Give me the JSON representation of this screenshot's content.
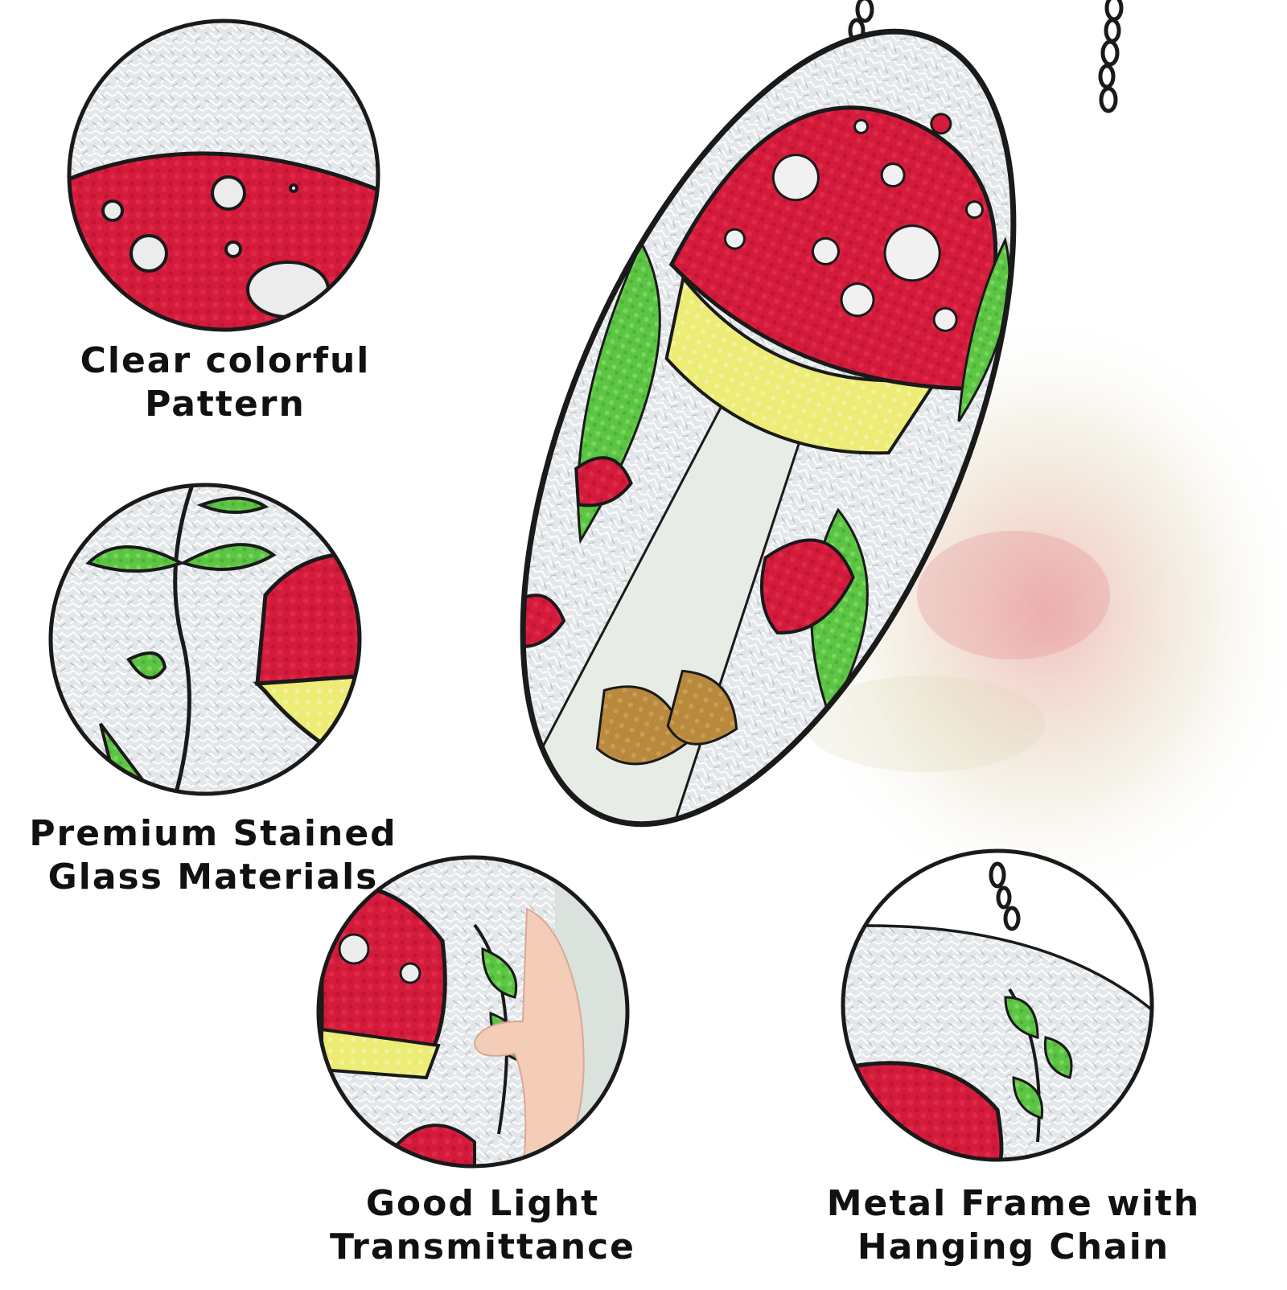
{
  "product": {
    "name": "Mushroom stained glass oval suncatcher",
    "colors": {
      "red": "#d3183a",
      "yellow": "#ecec77",
      "green": "#5fc846",
      "frame": "#1a1a1a",
      "glass": "#e6e9ec",
      "brown": "#b98a3e"
    }
  },
  "features": [
    {
      "icon": "mushroom-cap-closeup-icon",
      "line1": "Clear colorful",
      "line2": "Pattern"
    },
    {
      "icon": "sprout-closeup-icon",
      "line1": "Premium Stained",
      "line2": "Glass Materials"
    },
    {
      "icon": "hand-holding-glass-icon",
      "line1": "Good Light",
      "line2": "Transmittance"
    },
    {
      "icon": "chain-frame-closeup-icon",
      "line1": "Metal Frame with",
      "line2": "Hanging Chain"
    }
  ]
}
